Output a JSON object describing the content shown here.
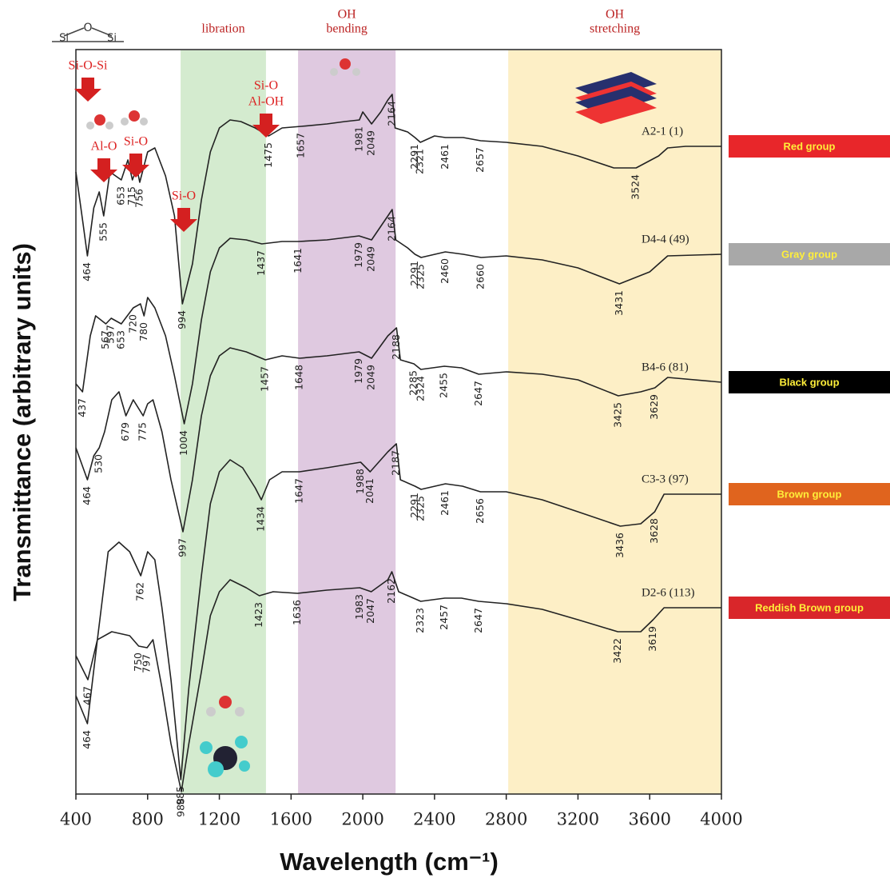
{
  "chart_data": {
    "type": "line",
    "x_label": "Wavelength (cm⁻¹)",
    "y_label": "Transmittance (arbitrary units)",
    "xlim": [
      400,
      4000
    ],
    "xticks": [
      400,
      800,
      1200,
      1600,
      2000,
      2400,
      2800,
      3200,
      3600,
      4000
    ],
    "ylim": [
      0,
      93
    ],
    "bands": [
      {
        "label": [
          "libration"
        ],
        "range": [
          984,
          1460
        ],
        "color": "#d4ebcf"
      },
      {
        "label": [
          "OH",
          "bending"
        ],
        "range": [
          1639,
          2183
        ],
        "color": "#dfc9e0"
      },
      {
        "label": [
          "OH",
          "stretching"
        ],
        "range": [
          2811,
          4000
        ],
        "color": "#fdefc6"
      }
    ],
    "annotations": [
      [
        "Si-O-Si"
      ],
      [
        "Al-O"
      ],
      [
        "Si-O"
      ],
      [
        "Si-O"
      ],
      [
        "Si-O",
        "Al-OH"
      ]
    ],
    "series": [
      {
        "name": "A2-1 (1)",
        "group": "Red group",
        "group_color": "#e8262a",
        "color": "#222222",
        "x": [
          400,
          440,
          464,
          500,
          530,
          555,
          590,
          653,
          690,
          715,
          740,
          756,
          800,
          840,
          900,
          950,
          994,
          1050,
          1100,
          1150,
          1200,
          1260,
          1320,
          1400,
          1475,
          1550,
          1657,
          1800,
          1900,
          1981,
          2000,
          2049,
          2100,
          2140,
          2164,
          2180,
          2250,
          2291,
          2321,
          2400,
          2461,
          2560,
          2657,
          2800,
          3000,
          3200,
          3400,
          3524,
          3650,
          3700,
          3800,
          4000
        ],
        "values": [
          77.8,
          71.3,
          67.3,
          73.3,
          75.3,
          72.3,
          77.8,
          76.8,
          79.3,
          76.8,
          78.3,
          76.5,
          80.3,
          80.8,
          77.3,
          72.3,
          61.3,
          66.3,
          74.3,
          80.3,
          83.3,
          84.3,
          84.1,
          83.3,
          82.3,
          83.3,
          83.5,
          83.8,
          84.1,
          84.3,
          85.3,
          83.8,
          85.3,
          86.8,
          87.5,
          83.3,
          82.8,
          82.1,
          81.5,
          82.3,
          82.1,
          82.1,
          81.7,
          81.5,
          81,
          79.8,
          78.3,
          78.3,
          79.8,
          80.8,
          81,
          81
        ],
        "peaks": [
          464,
          555,
          653,
          715,
          756,
          994,
          1475,
          1657,
          1981,
          2049,
          2164,
          2291,
          2321,
          2461,
          2657,
          3524
        ]
      },
      {
        "name": "D4-4 (49)",
        "group": "Gray group",
        "group_color": "#a8a8a8",
        "color": "#222222",
        "x": [
          400,
          437,
          480,
          510,
          567,
          597,
          653,
          720,
          760,
          780,
          800,
          840,
          900,
          950,
          1004,
          1050,
          1100,
          1150,
          1200,
          1260,
          1350,
          1437,
          1550,
          1641,
          1800,
          1979,
          2049,
          2140,
          2164,
          2184,
          2250,
          2291,
          2325,
          2460,
          2560,
          2660,
          2800,
          3000,
          3200,
          3431,
          3600,
          3700,
          4000
        ],
        "values": [
          51.3,
          50.3,
          57.3,
          59.8,
          58.8,
          59.5,
          58.8,
          60.8,
          61.3,
          59.8,
          62.1,
          60.8,
          57.3,
          52.3,
          46.3,
          51.3,
          59.3,
          65.3,
          68.3,
          69.5,
          69.3,
          68.8,
          69.1,
          69.1,
          69.3,
          69.8,
          69.3,
          72.3,
          73.1,
          69.3,
          68.3,
          67.5,
          67.1,
          67.8,
          67.5,
          67.1,
          67.3,
          66.8,
          65.8,
          63.8,
          65.3,
          67.3,
          67.5
        ],
        "peaks": [
          437,
          567,
          597,
          653,
          720,
          780,
          1004,
          1437,
          1641,
          1979,
          2049,
          2164,
          2291,
          2325,
          2460,
          2660,
          3431
        ]
      },
      {
        "name": "B4-6 (81)",
        "group": "Black group",
        "group_color": "#000000",
        "color": "#222222",
        "x": [
          400,
          464,
          500,
          530,
          560,
          600,
          640,
          679,
          720,
          775,
          800,
          830,
          880,
          930,
          997,
          1050,
          1100,
          1150,
          1200,
          1260,
          1350,
          1457,
          1550,
          1648,
          1800,
          1979,
          2049,
          2140,
          2188,
          2210,
          2285,
          2324,
          2455,
          2550,
          2647,
          2800,
          3000,
          3200,
          3425,
          3550,
          3629,
          3700,
          4000
        ],
        "values": [
          43.3,
          39.3,
          42.3,
          43.3,
          45.3,
          49.3,
          50.3,
          47.3,
          49.3,
          47.3,
          48.8,
          49.3,
          45.3,
          39.3,
          32.8,
          39.3,
          47.3,
          52.3,
          54.8,
          55.8,
          55.3,
          54.3,
          54.8,
          54.5,
          54.8,
          55.3,
          54.5,
          57.3,
          58.3,
          54.3,
          53.8,
          53.1,
          53.5,
          53.3,
          52.5,
          52.8,
          52.5,
          51.8,
          49.8,
          50.3,
          50.8,
          52.1,
          51.5
        ],
        "peaks": [
          464,
          530,
          679,
          775,
          997,
          1457,
          1648,
          1979,
          2049,
          2188,
          2285,
          2324,
          2455,
          2647,
          3425,
          3629
        ]
      },
      {
        "name": "C3-3 (97)",
        "group": "Brown group",
        "group_color": "#e0641e",
        "color": "#222222",
        "x": [
          400,
          464,
          520,
          580,
          640,
          700,
          762,
          800,
          840,
          880,
          930,
          985,
          1030,
          1100,
          1150,
          1200,
          1260,
          1330,
          1400,
          1434,
          1480,
          1550,
          1647,
          1800,
          1988,
          2041,
          2140,
          2187,
          2210,
          2291,
          2325,
          2461,
          2556,
          2656,
          2800,
          3000,
          3200,
          3436,
          3550,
          3628,
          3680,
          4000
        ],
        "values": [
          12.3,
          8.8,
          19.3,
          30.3,
          31.5,
          30.3,
          27.3,
          30.3,
          29.3,
          23.3,
          14.3,
          1.8,
          13.3,
          27.3,
          36.3,
          40.3,
          41.8,
          40.8,
          38.3,
          36.8,
          39.3,
          40.3,
          40.3,
          40.8,
          41.5,
          40.3,
          42.8,
          43.8,
          39.3,
          38.5,
          38.1,
          38.8,
          38.5,
          37.8,
          37.8,
          36.8,
          35.3,
          33.5,
          33.8,
          35.3,
          37.5,
          37.5
        ],
        "peaks": [
          464,
          762,
          985,
          1434,
          1647,
          1988,
          2041,
          2187,
          2291,
          2325,
          2461,
          2656,
          3436,
          3628
        ]
      },
      {
        "name": "D2-6 (113)",
        "group": "Reddish Brown group",
        "group_color": "#d9262a",
        "color": "#222222",
        "x": [
          400,
          467,
          520,
          600,
          700,
          750,
          797,
          830,
          880,
          930,
          988,
          1030,
          1100,
          1150,
          1200,
          1260,
          1350,
          1423,
          1500,
          1636,
          1800,
          1983,
          2047,
          2140,
          2162,
          2200,
          2323,
          2457,
          2550,
          2647,
          2800,
          3000,
          3200,
          3422,
          3550,
          3619,
          3680,
          4000
        ],
        "values": [
          17.3,
          14.3,
          19.3,
          20.3,
          19.8,
          18.5,
          18.3,
          19.3,
          13.3,
          6.3,
          0.3,
          6.3,
          15.3,
          22.3,
          25.3,
          26.8,
          25.8,
          24.8,
          25.3,
          25.1,
          25.5,
          25.8,
          25.3,
          26.8,
          27.8,
          25.3,
          24.1,
          24.5,
          24.5,
          24.1,
          23.8,
          23.1,
          21.8,
          20.3,
          20.3,
          21.8,
          23.3,
          23.3
        ],
        "peaks": [
          467,
          750,
          797,
          988,
          1423,
          1636,
          1983,
          2047,
          2162,
          2323,
          2457,
          2647,
          3422,
          3619
        ]
      }
    ]
  }
}
